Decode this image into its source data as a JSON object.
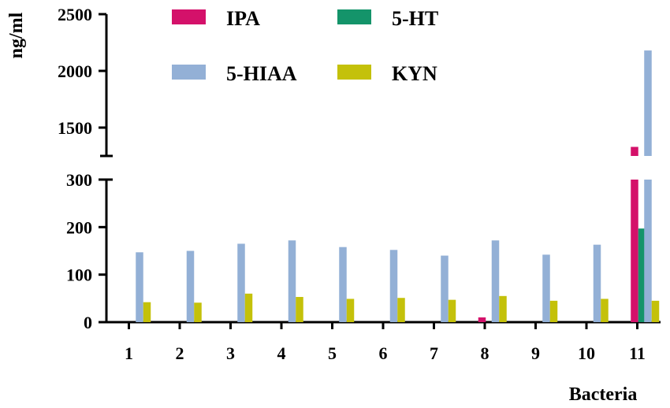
{
  "chart_data": {
    "type": "bar",
    "xlabel": "Bacteria",
    "ylabel": "ng/ml",
    "categories": [
      "1",
      "2",
      "3",
      "4",
      "5",
      "6",
      "7",
      "8",
      "9",
      "10",
      "11"
    ],
    "y_axis_break": {
      "lower_range": [
        0,
        300
      ],
      "upper_range": [
        1250,
        2500
      ],
      "lower_ticks": [
        "0",
        "100",
        "200",
        "300"
      ],
      "upper_ticks": [
        "1500",
        "2000",
        "2500"
      ]
    },
    "legend_position": "top",
    "grid": false,
    "series": [
      {
        "name": "IPA",
        "color": "#d4116a",
        "values": [
          0,
          0,
          0,
          0,
          0,
          0,
          0,
          10,
          0,
          0,
          1330
        ]
      },
      {
        "name": "5-HT",
        "color": "#14946a",
        "values": [
          0,
          0,
          0,
          0,
          0,
          0,
          0,
          0,
          0,
          0,
          197
        ]
      },
      {
        "name": "5-HIAA",
        "color": "#93b0d6",
        "values": [
          147,
          150,
          165,
          172,
          158,
          152,
          140,
          172,
          142,
          163,
          2180
        ]
      },
      {
        "name": "KYN",
        "color": "#c4c10a",
        "values": [
          42,
          41,
          60,
          53,
          49,
          51,
          47,
          55,
          45,
          49,
          45
        ]
      }
    ]
  }
}
